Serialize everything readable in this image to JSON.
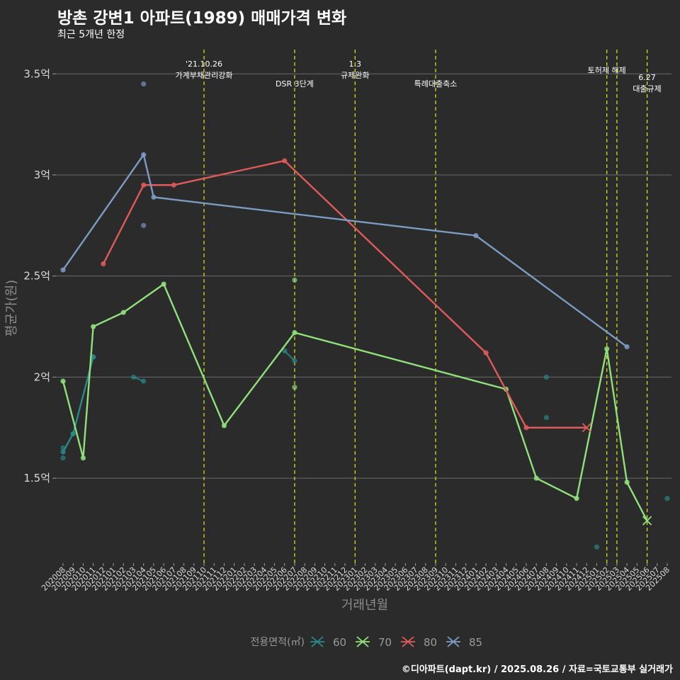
{
  "title": "방촌 강변1 아파트(1989) 매매가격 변화",
  "subtitle": "최근 5개년 한정",
  "caption": "©디아파트(dapt.kr) / 2025.08.26 / 자료=국토교통부 실거래가",
  "chart_data": {
    "type": "line",
    "xlabel": "거래년월",
    "ylabel": "평균가(원)",
    "ylim": [
      1.08,
      3.62
    ],
    "yticks": [
      {
        "value": 1.5,
        "label": "1.5억"
      },
      {
        "value": 2.0,
        "label": "2억"
      },
      {
        "value": 2.5,
        "label": "2.5억"
      },
      {
        "value": 3.0,
        "label": "3억"
      },
      {
        "value": 3.5,
        "label": "3.5억"
      }
    ],
    "categories": [
      "202008",
      "202009",
      "202010",
      "202011",
      "202012",
      "202101",
      "202102",
      "202103",
      "202104",
      "202105",
      "202106",
      "202107",
      "202108",
      "202109",
      "202110",
      "202111",
      "202112",
      "202201",
      "202202",
      "202203",
      "202204",
      "202205",
      "202206",
      "202207",
      "202208",
      "202209",
      "202210",
      "202211",
      "202212",
      "202301",
      "202302",
      "202303",
      "202304",
      "202305",
      "202306",
      "202307",
      "202308",
      "202309",
      "202310",
      "202311",
      "202312",
      "202401",
      "202402",
      "202403",
      "202404",
      "202405",
      "202406",
      "202407",
      "202408",
      "202409",
      "202410",
      "202411",
      "202412",
      "202501",
      "202502",
      "202503",
      "202504",
      "202505",
      "202506",
      "202507",
      "202508"
    ],
    "legend_title": "전용면적(㎡)",
    "series": [
      {
        "name": "60",
        "color": "#2a8a8a",
        "line": [
          [
            "202008",
            1.63
          ],
          [
            "202009",
            1.72
          ],
          [
            "202011",
            2.1
          ]
        ],
        "points": [
          [
            "202008",
            1.65
          ],
          [
            "202008",
            1.6
          ],
          [
            "202009",
            1.72
          ],
          [
            "202011",
            2.1
          ],
          [
            "202103",
            2.0
          ],
          [
            "202104",
            1.98
          ],
          [
            "202206",
            2.13
          ],
          [
            "202207",
            2.08
          ],
          [
            "202408",
            2.0
          ],
          [
            "202408",
            1.8
          ],
          [
            "202501",
            1.16
          ],
          [
            "202508",
            1.4
          ]
        ],
        "segments": [
          [
            [
              "202103",
              2.0
            ],
            [
              "202104",
              1.98
            ]
          ],
          [
            [
              "202206",
              2.13
            ],
            [
              "202207",
              2.08
            ]
          ]
        ]
      },
      {
        "name": "70",
        "color": "#90e07c",
        "line": [
          [
            "202008",
            1.98
          ],
          [
            "202010",
            1.6
          ],
          [
            "202011",
            2.25
          ],
          [
            "202102",
            2.32
          ],
          [
            "202106",
            2.46
          ],
          [
            "202112",
            1.76
          ],
          [
            "202207",
            2.22
          ],
          [
            "202404",
            1.94
          ],
          [
            "202407",
            1.5
          ],
          [
            "202411",
            1.4
          ],
          [
            "202502",
            2.14
          ],
          [
            "202504",
            1.48
          ],
          [
            "202506",
            1.29
          ]
        ],
        "points": [
          [
            "202207",
            2.48
          ],
          [
            "202207",
            1.95
          ]
        ]
      },
      {
        "name": "80",
        "color": "#e05a5a",
        "line": [
          [
            "202012",
            2.56
          ],
          [
            "202104",
            2.95
          ],
          [
            "202107",
            2.95
          ],
          [
            "202206",
            3.07
          ],
          [
            "202402",
            2.12
          ],
          [
            "202406",
            1.75
          ],
          [
            "202412",
            1.75
          ]
        ],
        "points": []
      },
      {
        "name": "85",
        "color": "#7c9cc4",
        "line": [
          [
            "202008",
            2.53
          ],
          [
            "202104",
            3.1
          ],
          [
            "202105",
            2.89
          ],
          [
            "202401",
            2.7
          ],
          [
            "202504",
            2.15
          ]
        ],
        "points": [
          [
            "202104",
            3.45
          ],
          [
            "202104",
            2.75
          ]
        ]
      }
    ],
    "events": [
      {
        "month": "202110",
        "lines": [
          "'21.10.26",
          "가계부채관리강화"
        ]
      },
      {
        "month": "202207",
        "lines": [
          "DSR 3단계"
        ]
      },
      {
        "month": "202301",
        "lines": [
          "1.3",
          "규제완화"
        ]
      },
      {
        "month": "202309",
        "lines": [
          "특례대출축소"
        ]
      },
      {
        "month": "202502",
        "lines": [
          "토허제 해제"
        ]
      },
      {
        "month": "202503",
        "lines": [
          ""
        ]
      },
      {
        "month": "202506",
        "lines": [
          "6.27",
          "대출규제"
        ]
      }
    ],
    "gridlines": true,
    "legend_position": "bottom"
  }
}
